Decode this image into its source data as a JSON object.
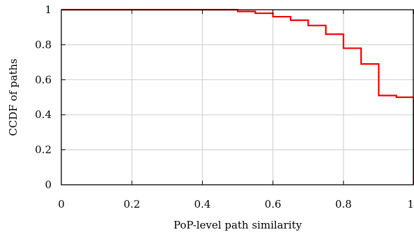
{
  "chart_data": {
    "type": "line",
    "xlabel": "PoP-level path similarity",
    "ylabel": "CCDF of paths",
    "xlim": [
      0,
      1
    ],
    "ylim": [
      0,
      1
    ],
    "x_ticks": [
      "0",
      "0.2",
      "0.4",
      "0.6",
      "0.8",
      "1"
    ],
    "y_ticks": [
      "0",
      "0.2",
      "0.4",
      "0.6",
      "0.8",
      "1"
    ],
    "grid": true,
    "series": [
      {
        "color": "#ee0000",
        "step": true,
        "x": [
          0,
          0.5,
          0.55,
          0.6,
          0.65,
          0.7,
          0.75,
          0.8,
          0.85,
          0.9,
          0.95,
          1.0,
          1.0
        ],
        "y": [
          1.0,
          0.99,
          0.98,
          0.96,
          0.94,
          0.91,
          0.86,
          0.78,
          0.69,
          0.51,
          0.5,
          0.5,
          0.0
        ]
      }
    ]
  }
}
